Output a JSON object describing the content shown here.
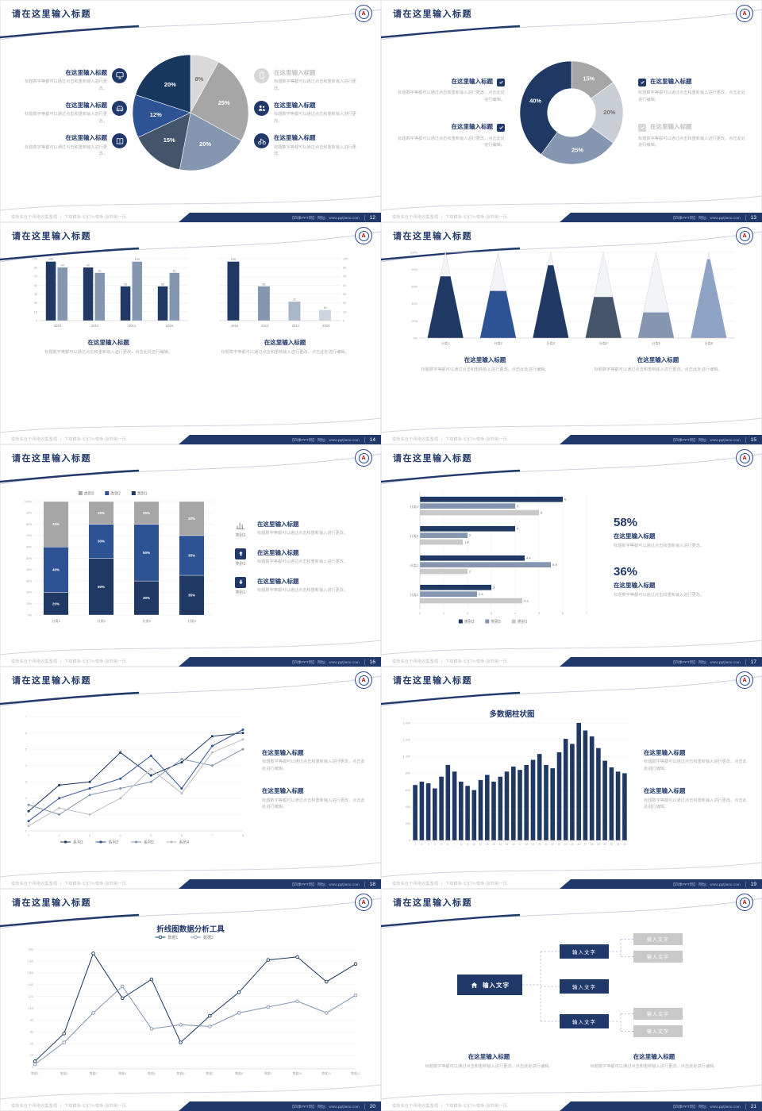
{
  "common": {
    "slide_title": "请在这里输入标题",
    "block_title": "在这里输入标题",
    "body_short": "标题数字等都可以通过点击和重新输入进行更改。",
    "body_long": "标题数字等都可以通过点击和重新输入进行更改，点击此处进行编辑。",
    "footer_left": "模板来自于网络收集整理 丨 下载模板-幻灯片模板-极简第一页",
    "footer_bar_text": "【四季PPT网】 网址：www.pptjiasu.com",
    "logo_letter": "A",
    "colors": {
      "navy": "#1f3864",
      "blue": "#2e5395",
      "steel": "#8496b0",
      "gray": "#a6a6a6",
      "light": "#d9d9d9"
    }
  },
  "slides": [
    {
      "page": "12",
      "left_items": [
        {
          "icon": "monitor"
        },
        {
          "icon": "car"
        },
        {
          "icon": "book"
        }
      ],
      "right_items": [
        {
          "icon": "phone"
        },
        {
          "icon": "people"
        },
        {
          "icon": "bike"
        }
      ],
      "charts": [
        {
          "type": "pie",
          "values": [
            8,
            25,
            20,
            15,
            12,
            20
          ],
          "labels": [
            "8%",
            "25%",
            "20%",
            "15%",
            "12%",
            "20%"
          ],
          "colors": [
            "#d9d9d9",
            "#a6a6a6",
            "#8496b0",
            "#44546a",
            "#2e5395",
            "#17375e"
          ],
          "label_colors": [
            "#737373",
            "#ffffff",
            "#ffffff",
            "#ffffff",
            "#ffffff",
            "#ffffff"
          ]
        }
      ]
    },
    {
      "page": "13",
      "left_items": [
        {
          "icon": "check"
        },
        {
          "icon": "check"
        }
      ],
      "right_items": [
        {
          "icon": "check"
        },
        {
          "icon": "check"
        }
      ],
      "charts": [
        {
          "type": "donut",
          "inner": 0.47,
          "values": [
            15,
            20,
            25,
            40
          ],
          "labels": [
            "15%",
            "20%",
            "25%",
            "40%"
          ],
          "colors": [
            "#a6a6a6",
            "#c9cdd4",
            "#8496b0",
            "#1f3864"
          ],
          "label_colors": [
            "#ffffff",
            "#737373",
            "#ffffff",
            "#ffffff"
          ]
        }
      ]
    },
    {
      "page": "14",
      "charts": [
        {
          "type": "bars",
          "categories": [
            "2010",
            "2012",
            "2014",
            "2016"
          ],
          "ymax": 105,
          "ticks": [
            0,
            15,
            30,
            45,
            60,
            75,
            90,
            105
          ],
          "series": [
            {
              "name": "系列1",
              "color": "#1f3864",
              "values": [
                100,
                90,
                58,
                58
              ]
            },
            {
              "name": "系列2",
              "color": "#8496b0",
              "values": [
                90,
                81,
                100,
                81
              ]
            }
          ]
        },
        {
          "type": "bars",
          "axisRight": true,
          "categories": [
            "2016",
            "2014",
            "2012",
            "2010"
          ],
          "ymax": 105,
          "ticks": [
            0,
            15,
            30,
            45,
            60,
            75,
            90,
            105
          ],
          "series": [
            {
              "name": "系列1",
              "colors": [
                "#1f3864",
                "#8496b0",
                "#a9b5c8",
                "#cdd5e0"
              ],
              "values": [
                100,
                58,
                32,
                18
              ]
            }
          ]
        }
      ]
    },
    {
      "page": "15",
      "charts": [
        {
          "type": "cone",
          "categories": [
            "分类1",
            "分类2",
            "分类3",
            "分类4",
            "分类5",
            "分类6"
          ],
          "ymax": 100,
          "ticks": [
            0,
            20,
            40,
            60,
            80,
            100
          ],
          "values": [
            72,
            55,
            85,
            48,
            30,
            92
          ],
          "colors": [
            "#1f3864",
            "#2e5395",
            "#1f3864",
            "#44546a",
            "#8496b0",
            "#8fa3c4"
          ]
        }
      ]
    },
    {
      "page": "16",
      "items": [
        {
          "icon": "chartbars",
          "tag": "类别3"
        },
        {
          "icon": "arrow-up",
          "tag": "类别2"
        },
        {
          "icon": "arrow-down",
          "tag": "类别1"
        }
      ],
      "charts": [
        {
          "type": "stack",
          "categories": [
            "分类1",
            "分类2",
            "分类3",
            "分类4"
          ],
          "colors": [
            "#1f3864",
            "#2e5395",
            "#a6a6a6"
          ],
          "legend": [
            "类别3",
            "类别2",
            "类别1"
          ],
          "legend_colors": [
            "#a6a6a6",
            "#2e5395",
            "#1f3864"
          ],
          "rows": [
            [
              20,
              40,
              40
            ],
            [
              50,
              30,
              20
            ],
            [
              30,
              50,
              20
            ],
            [
              35,
              35,
              30
            ]
          ]
        }
      ]
    },
    {
      "page": "17",
      "stats": [
        {
          "value": "58%"
        },
        {
          "value": "36%"
        }
      ],
      "charts": [
        {
          "type": "hbar",
          "categories": [
            "分类1",
            "分类2",
            "分类3",
            "分类4"
          ],
          "xmax": 7,
          "ticks": [
            0,
            1,
            2,
            3,
            4,
            5,
            6,
            7
          ],
          "series": [
            {
              "name": "类别3",
              "color": "#1f3864",
              "values": [
                3,
                4.4,
                4,
                6
              ]
            },
            {
              "name": "类别2",
              "color": "#8496b0",
              "values": [
                2.4,
                5.5,
                2,
                4
              ]
            },
            {
              "name": "类别1",
              "color": "#c9c9c9",
              "values": [
                4.3,
                2,
                1.8,
                5
              ]
            }
          ]
        }
      ]
    },
    {
      "page": "18",
      "charts": [
        {
          "type": "line",
          "legendPos": "bottom",
          "xlabels": [
            "1",
            "2",
            "3",
            "4",
            "5",
            "6",
            "7",
            "8"
          ],
          "ymax": 7,
          "ticks": [
            0,
            1,
            2,
            3,
            4,
            5,
            6,
            7
          ],
          "series": [
            {
              "name": "系列1",
              "color": "#17375e",
              "values": [
                1.2,
                2.8,
                3,
                4.8,
                3.4,
                4.2,
                5.8,
                6
              ]
            },
            {
              "name": "系列2",
              "color": "#2e5395",
              "values": [
                0.6,
                2,
                2.6,
                3.2,
                4.6,
                2.6,
                5.2,
                6.2
              ]
            },
            {
              "name": "系列3",
              "color": "#8496b0",
              "values": [
                1.6,
                1,
                2.2,
                2.6,
                3,
                4.4,
                4,
                5
              ]
            },
            {
              "name": "系列4",
              "color": "#bfbfbf",
              "values": [
                0.3,
                1.4,
                1,
                2,
                3.8,
                2.3,
                4.8,
                5.6
              ]
            }
          ]
        }
      ]
    },
    {
      "page": "19",
      "charts": [
        {
          "type": "cols",
          "title": "多数据柱状图",
          "color": "#1f3864",
          "ymax": 1400,
          "tickStep": 200,
          "values": [
            660,
            700,
            680,
            620,
            760,
            900,
            820,
            700,
            650,
            600,
            720,
            780,
            700,
            760,
            820,
            880,
            840,
            900,
            960,
            1030,
            900,
            860,
            1050,
            1210,
            1150,
            1400,
            1310,
            1240,
            1100,
            950,
            870,
            820,
            800
          ],
          "xlabels": [
            "1",
            "2",
            "3",
            "4",
            "5",
            "6",
            "7",
            "8",
            "9",
            "10",
            "11",
            "12",
            "13",
            "14",
            "15",
            "16",
            "17",
            "18",
            "19",
            "20",
            "21",
            "22",
            "23",
            "24",
            "25",
            "26",
            "27",
            "28",
            "29",
            "30",
            "31",
            "32",
            "33"
          ]
        }
      ]
    },
    {
      "page": "20",
      "charts": [
        {
          "type": "line",
          "title": "折线图数据分析工具",
          "legendPos": "top",
          "xlabels": [
            "数据1",
            "数据2",
            "数据3",
            "数据4",
            "数据5",
            "数据6",
            "数据7",
            "数据8",
            "数据9",
            "数据10",
            "数据11",
            "数据12"
          ],
          "ymax": 210,
          "ticks": [
            3,
            23,
            43,
            63,
            83,
            103,
            123,
            143,
            163,
            183,
            203
          ],
          "series": [
            {
              "name": "数据1",
              "color": "#17375e",
              "hollow": true,
              "values": [
                13,
                60,
                196,
                120,
                152,
                45,
                90,
                130,
                185,
                190,
                148,
                178
              ]
            },
            {
              "name": "数据2",
              "color": "#7f93b5",
              "hollow": true,
              "values": [
                8,
                45,
                95,
                140,
                68,
                75,
                72,
                95,
                105,
                115,
                95,
                125
              ]
            }
          ]
        }
      ]
    },
    {
      "page": "21",
      "diagram": {
        "root": {
          "icon": "home",
          "label": "输入文字"
        },
        "mids": [
          "输入文字",
          "输入文字",
          "输入文字"
        ],
        "leaves": [
          "输入文字",
          "输入文字",
          "输入文字",
          "输入文字"
        ]
      }
    }
  ]
}
